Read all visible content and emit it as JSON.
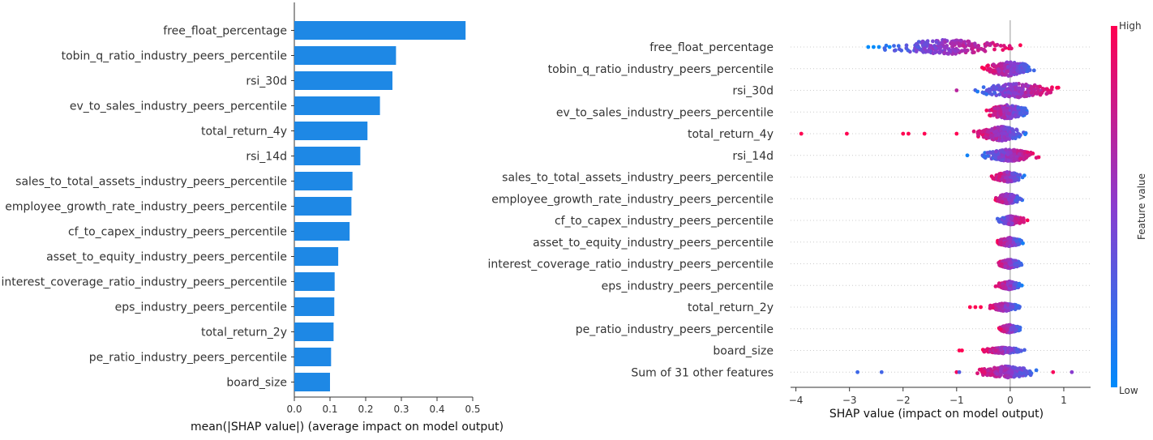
{
  "chart_data": [
    {
      "type": "bar",
      "title": "",
      "xlabel": "mean(|SHAP value|) (average impact on model output)",
      "ylabel": "",
      "xlim": [
        0,
        0.5
      ],
      "xticks": [
        0.0,
        0.1,
        0.2,
        0.3,
        0.4,
        0.5
      ],
      "xtick_labels": [
        "0.0",
        "0.1",
        "0.2",
        "0.3",
        "0.4",
        "0.5"
      ],
      "orientation": "horizontal",
      "color": "#1e88e5",
      "categories": [
        "free_float_percentage",
        "tobin_q_ratio_industry_peers_percentile",
        "rsi_30d",
        "ev_to_sales_industry_peers_percentile",
        "total_return_4y",
        "rsi_14d",
        "sales_to_total_assets_industry_peers_percentile",
        "employee_growth_rate_industry_peers_percentile",
        "cf_to_capex_industry_peers_percentile",
        "asset_to_equity_industry_peers_percentile",
        "interest_coverage_ratio_industry_peers_percentile",
        "eps_industry_peers_percentile",
        "total_return_2y",
        "pe_ratio_industry_peers_percentile",
        "board_size"
      ],
      "values": [
        0.48,
        0.285,
        0.275,
        0.24,
        0.205,
        0.185,
        0.163,
        0.16,
        0.155,
        0.123,
        0.113,
        0.112,
        0.11,
        0.103,
        0.1
      ]
    },
    {
      "type": "scatter",
      "subtype": "beeswarm",
      "title": "",
      "xlabel": "SHAP value (impact on model output)",
      "ylabel": "",
      "xlim": [
        -4.1,
        1.5
      ],
      "xticks": [
        -4,
        -3,
        -2,
        -1,
        0,
        1
      ],
      "xtick_labels": [
        "−4",
        "−3",
        "−2",
        "−1",
        "0",
        "1"
      ],
      "colorbar": {
        "label": "Feature value",
        "high_label": "High",
        "low_label": "Low",
        "high_color": "#ff0051",
        "low_color": "#008bfb"
      },
      "features": [
        {
          "name": "free_float_percentage",
          "min": -2.7,
          "max": 0.35,
          "outliers": [
            -2.65,
            -2.55,
            -2.45,
            -2.25
          ],
          "width": 1.0
        },
        {
          "name": "tobin_q_ratio_industry_peers_percentile",
          "min": -0.6,
          "max": 0.55,
          "outliers": [],
          "width": 1.0
        },
        {
          "name": "rsi_30d",
          "min": -0.8,
          "max": 1.05,
          "outliers": [
            -1.0
          ],
          "width": 1.0
        },
        {
          "name": "ev_to_sales_industry_peers_percentile",
          "min": -0.55,
          "max": 0.45,
          "outliers": [],
          "width": 1.0
        },
        {
          "name": "total_return_4y",
          "min": -0.75,
          "max": 0.4,
          "outliers": [
            -3.9,
            -3.05,
            -2.0,
            -1.9,
            -1.6,
            -1.0
          ],
          "width": 1.0
        },
        {
          "name": "rsi_14d",
          "min": -0.65,
          "max": 0.6,
          "outliers": [
            -0.8
          ],
          "width": 0.85
        },
        {
          "name": "sales_to_total_assets_industry_peers_percentile",
          "min": -0.38,
          "max": 0.3,
          "outliers": [],
          "width": 0.7
        },
        {
          "name": "employee_growth_rate_industry_peers_percentile",
          "min": -0.35,
          "max": 0.28,
          "outliers": [],
          "width": 0.7
        },
        {
          "name": "cf_to_capex_industry_peers_percentile",
          "min": -0.32,
          "max": 0.35,
          "outliers": [],
          "width": 0.6
        },
        {
          "name": "asset_to_equity_industry_peers_percentile",
          "min": -0.3,
          "max": 0.28,
          "outliers": [],
          "width": 0.6
        },
        {
          "name": "interest_coverage_ratio_industry_peers_percentile",
          "min": -0.3,
          "max": 0.28,
          "outliers": [],
          "width": 0.6
        },
        {
          "name": "eps_industry_peers_percentile",
          "min": -0.3,
          "max": 0.25,
          "outliers": [],
          "width": 0.55
        },
        {
          "name": "total_return_2y",
          "min": -0.45,
          "max": 0.25,
          "outliers": [
            -0.75,
            -0.65,
            -0.55
          ],
          "width": 0.55
        },
        {
          "name": "pe_ratio_industry_peers_percentile",
          "min": -0.25,
          "max": 0.22,
          "outliers": [],
          "width": 0.55
        },
        {
          "name": "board_size",
          "min": -0.6,
          "max": 0.35,
          "outliers": [
            -0.95,
            -0.9
          ],
          "width": 0.4
        },
        {
          "name": "Sum of 31 other features",
          "min": -0.8,
          "max": 0.65,
          "outliers": [
            -2.85,
            -2.4,
            -1.0,
            -0.95,
            0.8,
            1.15
          ],
          "width": 0.8
        }
      ]
    }
  ]
}
